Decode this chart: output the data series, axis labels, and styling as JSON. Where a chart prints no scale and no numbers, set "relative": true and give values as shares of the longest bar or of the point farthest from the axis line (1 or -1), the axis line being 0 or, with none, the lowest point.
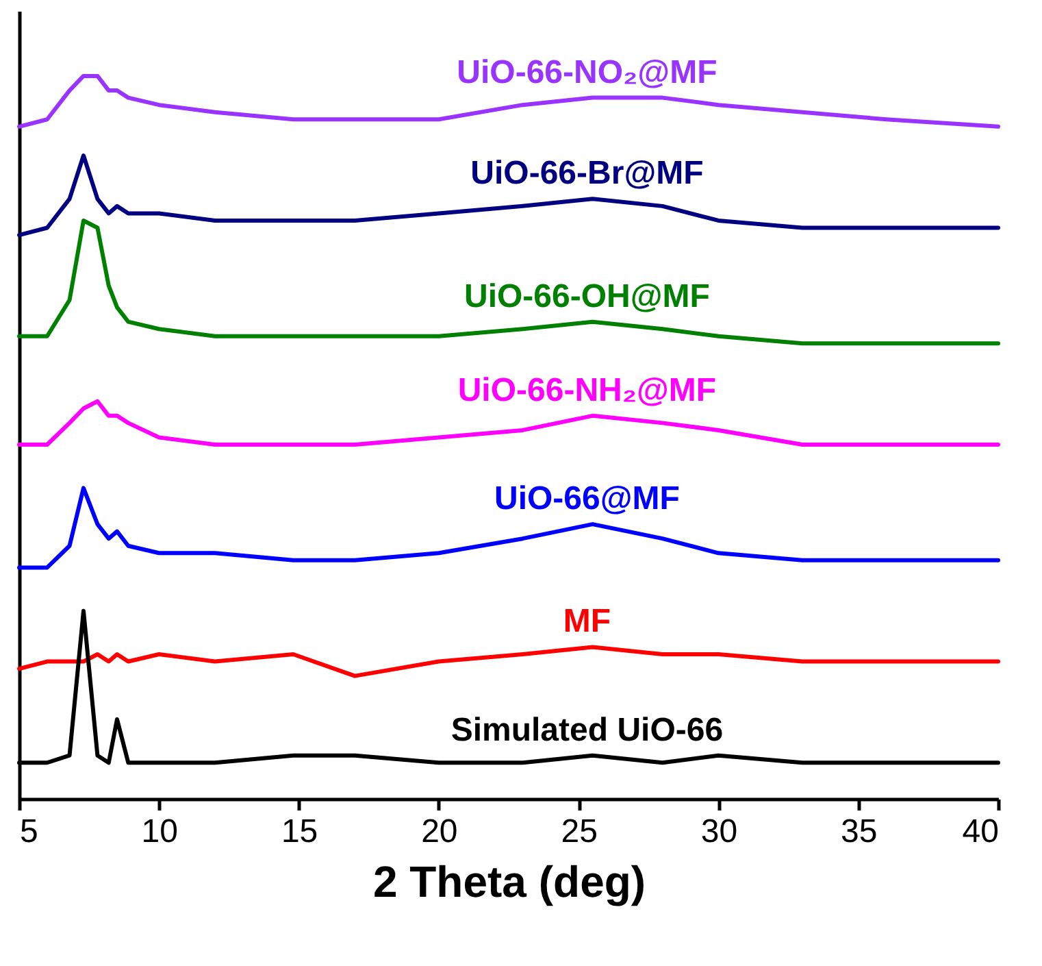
{
  "chart_data": {
    "type": "line",
    "xlabel": "2 Theta (deg)",
    "relative": true,
    "xlim": [
      5,
      40
    ],
    "xticks": [
      5,
      10,
      15,
      20,
      25,
      30,
      35,
      40
    ],
    "tick_labels": "x",
    "grid": false,
    "legend": false,
    "line_style": "solid",
    "marker": "none",
    "x": [
      5,
      6,
      6.8,
      7.3,
      7.8,
      8.2,
      8.5,
      8.9,
      10,
      12,
      14.8,
      17,
      20,
      23,
      25.5,
      28,
      30,
      33,
      36,
      40
    ],
    "series": [
      {
        "name": "UiO-66-NO₂@MF",
        "color": "#9933ff",
        "values": [
          0.93,
          0.94,
          0.98,
          1.0,
          1.0,
          0.98,
          0.98,
          0.97,
          0.96,
          0.95,
          0.94,
          0.94,
          0.94,
          0.96,
          0.97,
          0.97,
          0.96,
          0.95,
          0.94,
          0.93
        ]
      },
      {
        "name": "UiO-66-Br@MF",
        "color": "#000080",
        "values": [
          0.78,
          0.79,
          0.83,
          0.89,
          0.83,
          0.81,
          0.82,
          0.81,
          0.81,
          0.8,
          0.8,
          0.8,
          0.81,
          0.82,
          0.83,
          0.82,
          0.8,
          0.79,
          0.79,
          0.79
        ]
      },
      {
        "name": "UiO-66-OH@MF",
        "color": "#008000",
        "values": [
          0.64,
          0.64,
          0.69,
          0.8,
          0.79,
          0.71,
          0.68,
          0.66,
          0.65,
          0.64,
          0.64,
          0.64,
          0.64,
          0.65,
          0.66,
          0.65,
          0.64,
          0.63,
          0.63,
          0.63
        ]
      },
      {
        "name": "UiO-66-NH₂@MF",
        "color": "#ff00ff",
        "values": [
          0.49,
          0.49,
          0.52,
          0.54,
          0.55,
          0.53,
          0.53,
          0.52,
          0.5,
          0.49,
          0.49,
          0.49,
          0.5,
          0.51,
          0.53,
          0.52,
          0.51,
          0.49,
          0.49,
          0.49
        ]
      },
      {
        "name": "UiO-66@MF",
        "color": "#0000ff",
        "values": [
          0.32,
          0.32,
          0.35,
          0.43,
          0.38,
          0.36,
          0.37,
          0.35,
          0.34,
          0.34,
          0.33,
          0.33,
          0.34,
          0.36,
          0.38,
          0.36,
          0.34,
          0.33,
          0.33,
          0.33
        ]
      },
      {
        "name": "MF",
        "color": "#ff0000",
        "values": [
          0.18,
          0.19,
          0.19,
          0.19,
          0.2,
          0.19,
          0.2,
          0.19,
          0.2,
          0.19,
          0.2,
          0.17,
          0.19,
          0.2,
          0.21,
          0.2,
          0.2,
          0.19,
          0.19,
          0.19
        ]
      },
      {
        "name": "Simulated UiO-66",
        "color": "#000000",
        "values": [
          0.05,
          0.05,
          0.06,
          0.26,
          0.06,
          0.05,
          0.11,
          0.05,
          0.05,
          0.05,
          0.06,
          0.06,
          0.05,
          0.05,
          0.06,
          0.05,
          0.06,
          0.05,
          0.05,
          0.05
        ]
      }
    ]
  }
}
